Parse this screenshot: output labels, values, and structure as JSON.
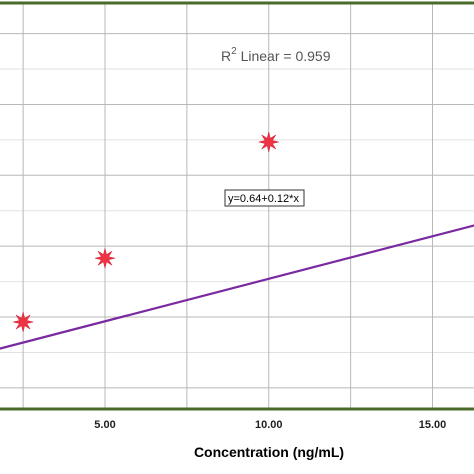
{
  "chart_data": {
    "type": "scatter",
    "xlabel": "Concentration  (ng/mL)",
    "ylabel": "",
    "title": "",
    "xlim": [
      0.0,
      17.5
    ],
    "ylim": [
      0.0,
      5.7
    ],
    "x_ticks": [
      5.0,
      10.0,
      15.0
    ],
    "x_tick_labels": [
      "5.00",
      "10.00",
      "15.00"
    ],
    "x_gridlines": [
      2.5,
      5.0,
      7.5,
      10.0,
      12.5,
      15.0
    ],
    "y_gridlines": [
      0.3,
      1.3,
      2.3,
      3.3,
      4.3,
      5.3
    ],
    "y_minor_gridlines": [
      0.8,
      1.8,
      2.8,
      3.8,
      4.8
    ],
    "grid": true,
    "series": [
      {
        "marker": "star",
        "color": "#ee3344",
        "points": [
          {
            "x": 2.5,
            "y": 1.23
          },
          {
            "x": 5.0,
            "y": 2.13
          },
          {
            "x": 10.0,
            "y": 3.77
          }
        ]
      }
    ],
    "fit": {
      "color": "#7a2aa0",
      "intercept": 0.64,
      "slope": 0.12,
      "equation_label": "y=0.64+0.12*x",
      "r2_prefix": "R",
      "r2_sup": "2",
      "r2_rest": " Linear = 0.959"
    },
    "colors": {
      "frame": "#4a6a2a",
      "grid": "#b8b8b8",
      "minor_grid": "#e2e2e2"
    }
  }
}
